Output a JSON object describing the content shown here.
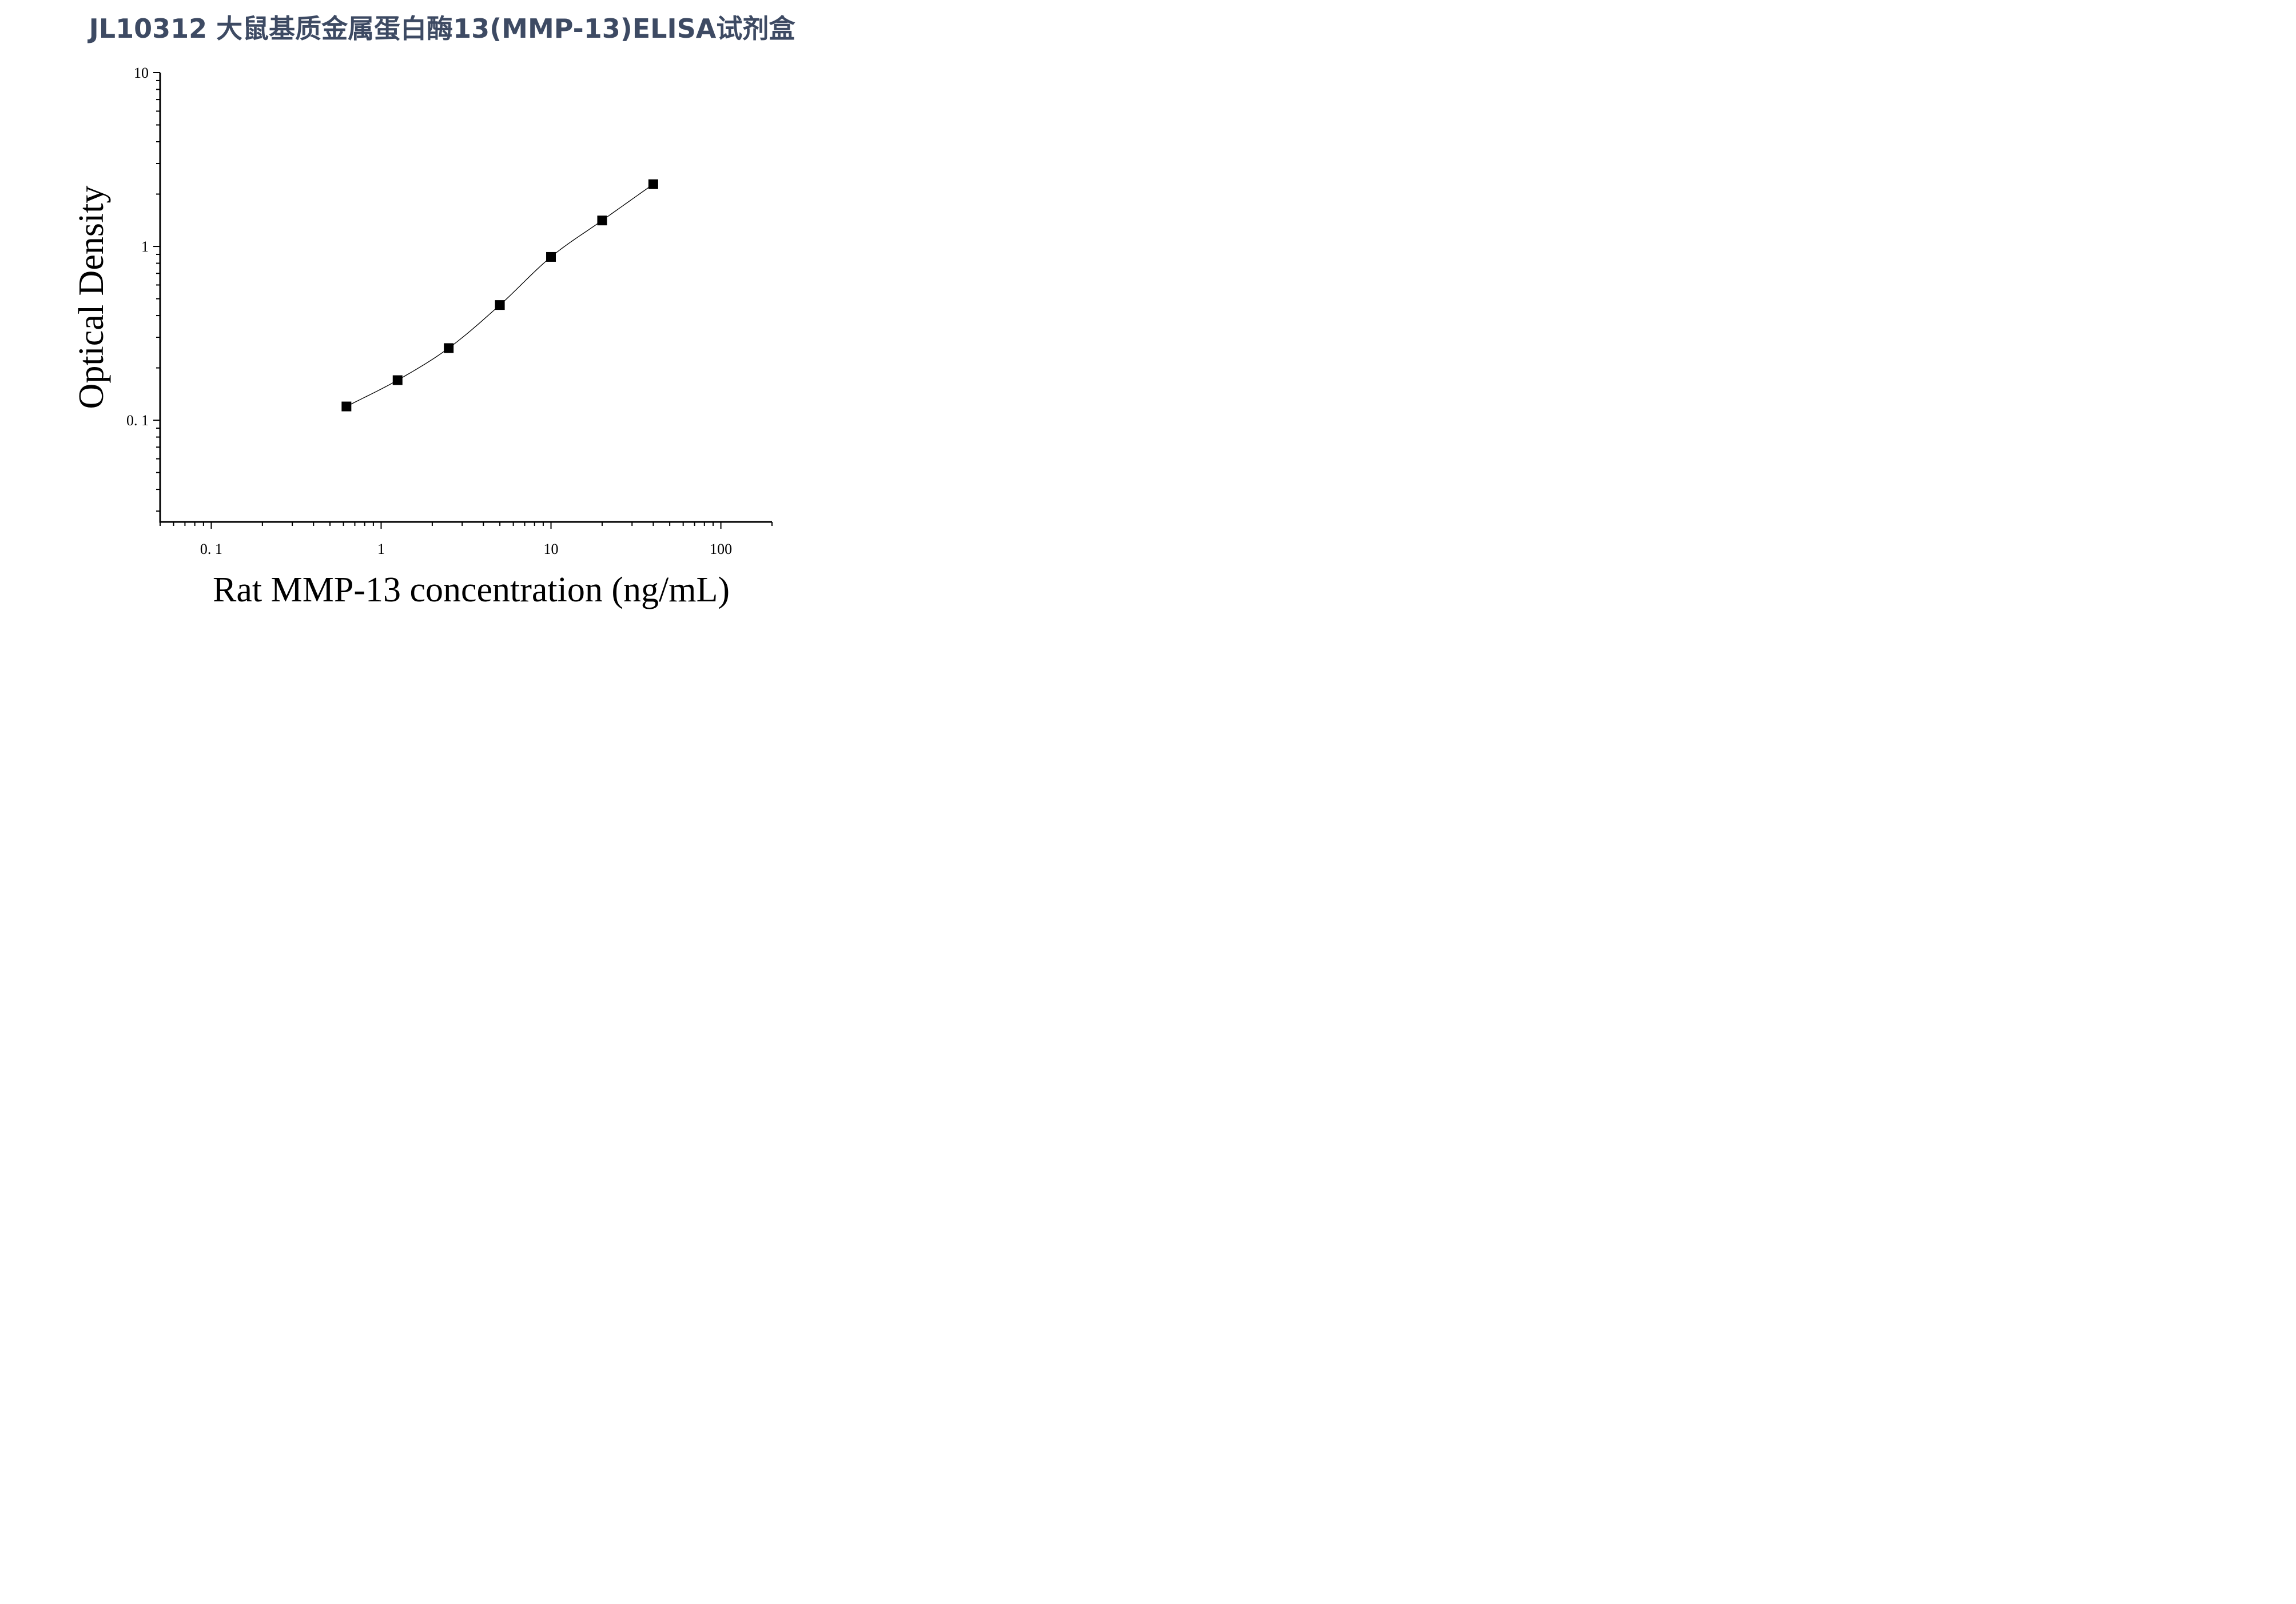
{
  "title": "JL10312 大鼠基质金属蛋白酶13(MMP-13)ELISA试剂盒",
  "chart_data": {
    "type": "scatter",
    "xlabel": "Rat MMP-13 concentration (ng/mL)",
    "ylabel": "Optical Density",
    "xscale": "log",
    "yscale": "log",
    "xlim": [
      0.05,
      200
    ],
    "ylim": [
      0.026,
      10
    ],
    "x_tick_labels": [
      "0. 1",
      "1",
      "10",
      "100"
    ],
    "x_tick_values": [
      0.1,
      1,
      10,
      100
    ],
    "y_tick_labels": [
      "0. 1",
      "1",
      "10"
    ],
    "y_tick_values": [
      0.1,
      1,
      10
    ],
    "grid": false,
    "series": [
      {
        "x": [
          0.625,
          1.25,
          2.5,
          5,
          10,
          20,
          40
        ],
        "y": [
          0.12,
          0.17,
          0.26,
          0.46,
          0.87,
          1.41,
          2.28
        ],
        "marker": "square",
        "color": "#000000",
        "fit_curve": true
      }
    ]
  }
}
